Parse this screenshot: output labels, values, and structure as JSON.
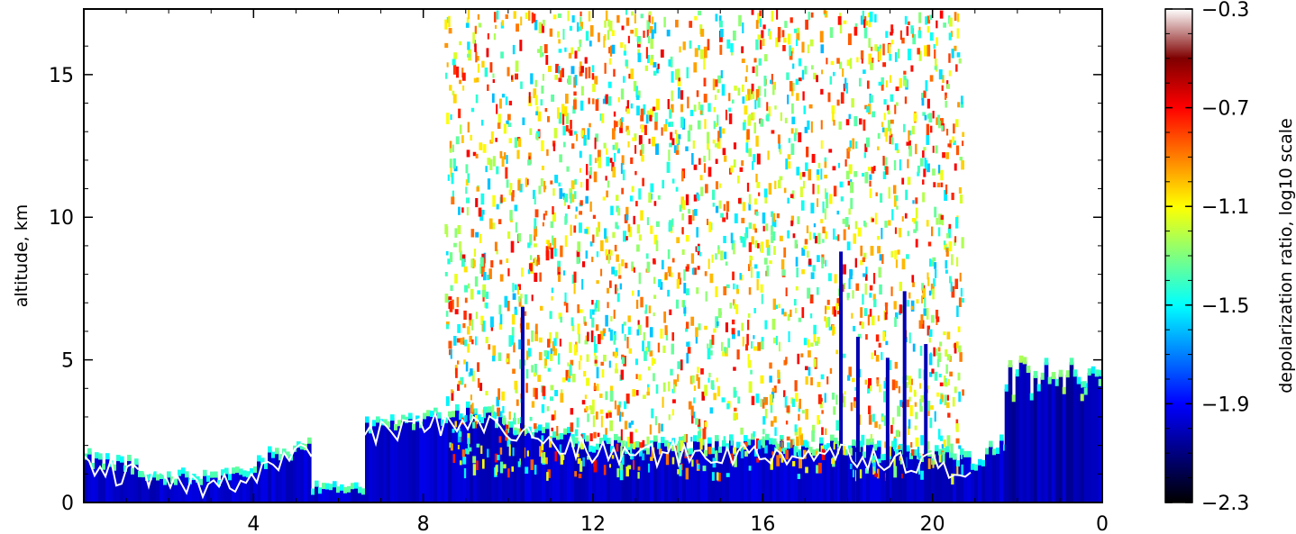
{
  "chart_data": {
    "type": "heatmap",
    "title": "",
    "xlabel": "",
    "ylabel": "altitude, km",
    "x_ticks": [
      "4",
      "8",
      "12",
      "16",
      "20",
      "0"
    ],
    "x_tick_hours": [
      4,
      8,
      12,
      16,
      20,
      24
    ],
    "xlim_hours": [
      0,
      24
    ],
    "y_ticks": [
      "0",
      "5",
      "10",
      "15"
    ],
    "y_tick_values": [
      0,
      5,
      10,
      15
    ],
    "ylim": [
      0,
      17.3
    ],
    "colorbar": {
      "label": "depolarization ratio, log10 scale",
      "ticks": [
        "−2.3",
        "−1.9",
        "−1.5",
        "−1.1",
        "−0.7",
        "−0.3"
      ],
      "tick_values": [
        -2.3,
        -1.9,
        -1.5,
        -1.1,
        -0.7,
        -0.3
      ],
      "range": [
        -2.3,
        -0.3
      ],
      "colormap": "jet",
      "colors": [
        "#000000",
        "#00007f",
        "#0000ff",
        "#007fff",
        "#00ffff",
        "#7fff7f",
        "#ffff00",
        "#ff7f00",
        "#ff0000",
        "#7f0000",
        "#ffffff"
      ]
    },
    "features": [
      {
        "name": "boundary layer",
        "x_hours": [
          0,
          24
        ],
        "top_km": [
          1.5,
          0.8,
          2.5,
          3.2,
          2.0,
          2.0,
          2.0,
          1.5,
          4.5
        ],
        "value": -2.15
      },
      {
        "name": "sparse scatter",
        "x_hours": [
          8.5,
          20.7
        ],
        "altitude_km": [
          1,
          17.3
        ],
        "value_range": [
          -1.7,
          -0.5
        ]
      },
      {
        "name": "elevated dense layer",
        "x_hours": [
          21.7,
          24
        ],
        "altitude_km": [
          0,
          5
        ],
        "value": -2.2
      }
    ],
    "grid": false,
    "legend": "colorbar-right"
  }
}
